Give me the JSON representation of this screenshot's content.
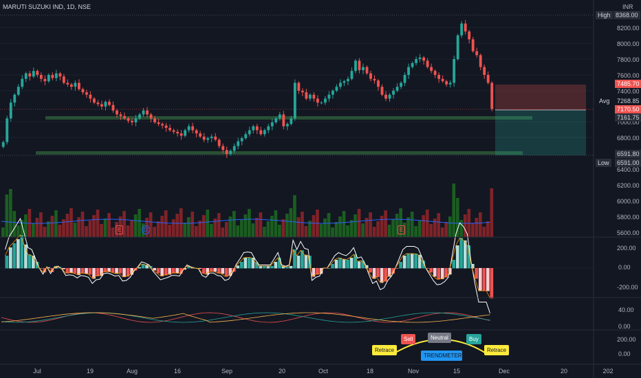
{
  "title": "MARUTI SUZUKI IND, 1D, NSE",
  "currency": "INR",
  "colors": {
    "up": "#26a69a",
    "down": "#ef5350",
    "bg": "#131722",
    "grid": "#2a2e39"
  },
  "price_axis": {
    "ticks": [
      "8200.00",
      "8000.00",
      "7800.00",
      "7600.00",
      "7400.00",
      "7000.00",
      "6800.00",
      "6400.00",
      "6200.00",
      "6000.00",
      "5800.00",
      "5600.00"
    ],
    "labels": {
      "high_name": "High",
      "high": "8368.00",
      "tp": "7485.70",
      "avg_name": "Avg",
      "avg": "7268.85",
      "last": "7170.50",
      "last2": "7161.75",
      "sl": "6591.80",
      "low_name": "Low",
      "low": "6591.00"
    }
  },
  "macd_axis": [
    "200.00",
    "0.00",
    "-200.00"
  ],
  "osc_axis": [
    "40.00",
    "0.00"
  ],
  "trend_axis": [
    "200.00",
    "0.00"
  ],
  "time_axis": [
    "Jul",
    "19",
    "Aug",
    "16",
    "Sep",
    "20",
    "Oct",
    "18",
    "Nov",
    "15",
    "Dec",
    "20",
    "202"
  ],
  "events": {
    "earnings": "E",
    "dividend": "D"
  },
  "trendmeter": {
    "sell": "Sell",
    "neutral": "Neutral",
    "buy": "Buy",
    "retrace_left": "Retrace",
    "retrace_right": "Retrace",
    "center": "TRENDMETER"
  },
  "chart_data": {
    "type": "candlestick",
    "x_range": [
      "Jun 2024",
      "Nov 2024"
    ],
    "y_range": [
      6400,
      8400
    ],
    "closes": [
      6750,
      7050,
      7250,
      7350,
      7450,
      7550,
      7620,
      7580,
      7650,
      7600,
      7550,
      7520,
      7600,
      7560,
      7620,
      7580,
      7500,
      7480,
      7450,
      7500,
      7420,
      7380,
      7350,
      7300,
      7250,
      7230,
      7200,
      7260,
      7220,
      7150,
      7100,
      7080,
      7050,
      7020,
      7000,
      7050,
      7100,
      7150,
      7100,
      7050,
      7000,
      6980,
      6960,
      6930,
      6900,
      6880,
      6860,
      6830,
      6900,
      6950,
      6900,
      6860,
      6820,
      6780,
      6800,
      6820,
      6780,
      6700,
      6650,
      6600,
      6640,
      6700,
      6760,
      6800,
      6850,
      6900,
      6950,
      6900,
      6850,
      6900,
      6950,
      7000,
      7050,
      7100,
      6950,
      6980,
      7050,
      7500,
      7400,
      7380,
      7300,
      7350,
      7300,
      7250,
      7250,
      7300,
      7350,
      7400,
      7450,
      7500,
      7520,
      7550,
      7650,
      7780,
      7660,
      7700,
      7620,
      7550,
      7530,
      7450,
      7350,
      7300,
      7350,
      7400,
      7450,
      7500,
      7600,
      7700,
      7750,
      7800,
      7820,
      7780,
      7700,
      7650,
      7600,
      7550,
      7520,
      7480,
      7500,
      7800,
      8100,
      8250,
      8150,
      8050,
      7900,
      7850,
      7700,
      7600,
      7500,
      7170
    ]
  }
}
